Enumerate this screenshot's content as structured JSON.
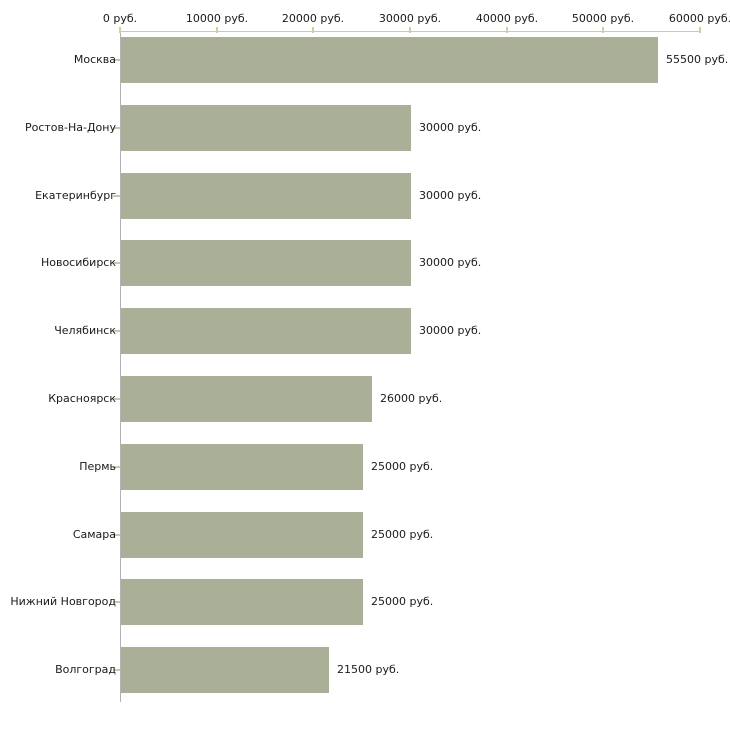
{
  "chart_data": {
    "type": "bar",
    "orientation": "horizontal",
    "title": "",
    "xlabel": "",
    "ylabel": "",
    "unit": "руб.",
    "categories": [
      "Москва",
      "Ростов-На-Дону",
      "Екатеринбург",
      "Новосибирск",
      "Челябинск",
      "Красноярск",
      "Пермь",
      "Самара",
      "Нижний Новгород",
      "Волгоград"
    ],
    "values": [
      55500,
      30000,
      30000,
      30000,
      30000,
      26000,
      25000,
      25000,
      25000,
      21500
    ],
    "value_labels": [
      "55500 руб.",
      "30000 руб.",
      "30000 руб.",
      "30000 руб.",
      "30000 руб.",
      "26000 руб.",
      "25000 руб.",
      "25000 руб.",
      "25000 руб.",
      "21500 руб."
    ],
    "x_ticks": [
      0,
      10000,
      20000,
      30000,
      40000,
      50000,
      60000
    ],
    "x_tick_labels": [
      "0 руб.",
      "10000 руб.",
      "20000 руб.",
      "30000 руб.",
      "40000 руб.",
      "50000 руб.",
      "60000 руб."
    ],
    "xlim": [
      0,
      60000
    ],
    "grid": false,
    "legend": null,
    "colors": {
      "bar": "#aab097",
      "x_axis_line": "#c8c8c2",
      "y_axis_line": "#b2b2b2",
      "tick_mark": "#cdd0a3",
      "category_tick_mark": "#c6c9ab",
      "text": "#1a1a1a",
      "background": "#ffffff"
    }
  }
}
